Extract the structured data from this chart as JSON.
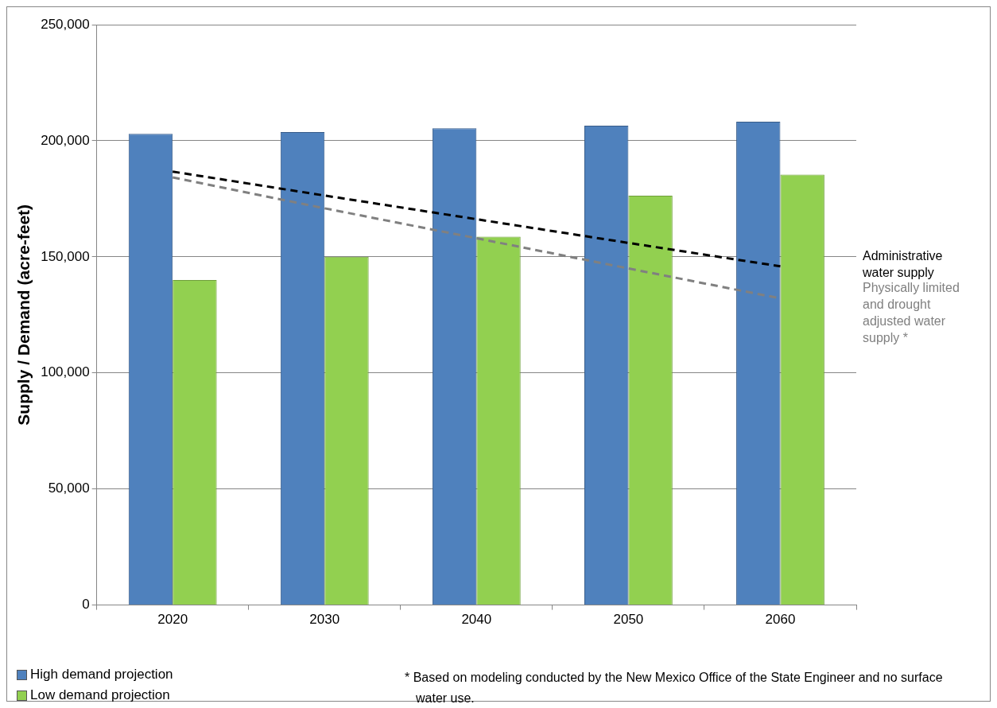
{
  "chart_data": {
    "type": "bar",
    "ylabel": "Supply / Demand (acre-feet)",
    "categories": [
      "2020",
      "2030",
      "2040",
      "2050",
      "2060"
    ],
    "series": [
      {
        "name": "High demand projection",
        "color": "#4f81bd",
        "values": [
          203000,
          203700,
          205400,
          206500,
          208200
        ]
      },
      {
        "name": "Low demand projection",
        "color": "#92d050",
        "values": [
          140000,
          150000,
          158700,
          176300,
          185400
        ]
      },
      {
        "name": "Administrative water supply",
        "type": "line",
        "color": "#000000",
        "line_style": "dashed",
        "marker": "none",
        "values": [
          186700,
          176400,
          166200,
          156000,
          145900
        ]
      },
      {
        "name": "Physically limited and drought adjusted water supply *",
        "type": "line",
        "color": "#808080",
        "line_style": "dashed",
        "marker": "none",
        "values": [
          184200,
          170900,
          158000,
          145000,
          132100
        ]
      }
    ],
    "ylim": [
      0,
      250000
    ],
    "yticks": [
      0,
      {
        "value": 50000,
        "label": "50,000"
      },
      {
        "value": 100000,
        "label": "100,000"
      },
      {
        "value": 150000,
        "label": "150,000"
      },
      {
        "value": 200000,
        "label": "200,000"
      },
      {
        "value": 250000,
        "label": "250,000"
      }
    ],
    "grid": "y",
    "legend": "bottom left",
    "annotations": [
      "* Based on  modeling conducted by the New Mexico Office of the State Engineer and no surface water use."
    ]
  }
}
